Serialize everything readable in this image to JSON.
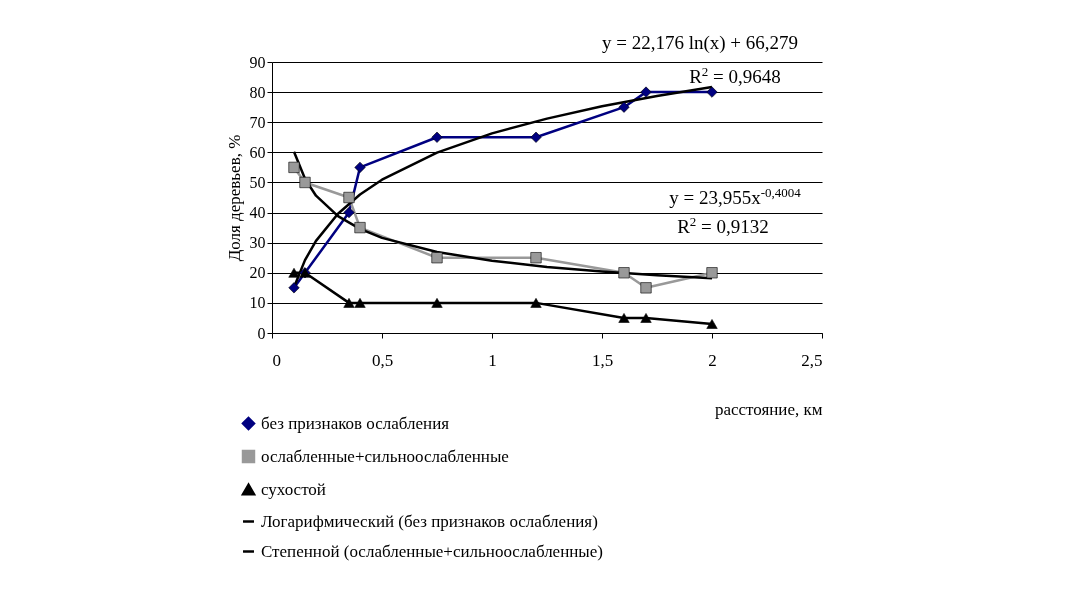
{
  "chart_data": {
    "type": "line",
    "xlabel": "расстояние, км",
    "ylabel": "Доля деревьев, %",
    "x": [
      0.1,
      0.15,
      0.35,
      0.4,
      0.75,
      1.2,
      1.6,
      1.7,
      2
    ],
    "series": [
      {
        "name": "без признаков ослабления",
        "color": "#000080",
        "marker": "diamond",
        "values": [
          15,
          20,
          40,
          55,
          65,
          65,
          75,
          80,
          80
        ]
      },
      {
        "name": "ослабленные+сильноослабленные",
        "color": "#999999",
        "marker": "square",
        "values": [
          55,
          50,
          45,
          35,
          25,
          25,
          20,
          15,
          20
        ]
      },
      {
        "name": "сухостой",
        "color": "#000000",
        "marker": "triangle",
        "values": [
          20,
          20,
          10,
          10,
          10,
          10,
          5,
          5,
          3
        ]
      },
      {
        "name": "Логарифмический (без признаков ослабления)",
        "color": "#000000",
        "marker": "none",
        "x": [
          0.1,
          0.15,
          0.2,
          0.3,
          0.4,
          0.5,
          0.75,
          1,
          1.25,
          1.5,
          1.75,
          2
        ],
        "values": [
          15.2,
          24.2,
          30.6,
          39.6,
          46.0,
          50.9,
          59.9,
          66.3,
          71.2,
          75.3,
          78.7,
          81.7
        ]
      },
      {
        "name": "Степенной (ослабленные+сильноослабленные)",
        "color": "#000000",
        "marker": "none",
        "x": [
          0.1,
          0.15,
          0.2,
          0.3,
          0.4,
          0.5,
          0.75,
          1,
          1.25,
          1.5,
          1.75,
          2
        ],
        "values": [
          60.2,
          51.2,
          45.6,
          38.8,
          34.6,
          31.6,
          26.9,
          24.0,
          21.9,
          20.4,
          19.2,
          18.2
        ]
      }
    ],
    "xlim": [
      0,
      2.5
    ],
    "xticks": [
      0,
      {
        "value": 0.5,
        "label": "0,5"
      },
      1,
      {
        "value": 1.5,
        "label": "1,5"
      },
      2,
      {
        "value": 2.5,
        "label": "2,5"
      }
    ],
    "ylim": [
      0,
      90
    ],
    "yticks": [
      0,
      10,
      20,
      30,
      40,
      50,
      60,
      70,
      80,
      90
    ],
    "grid": "y",
    "legend": "bottom",
    "line_style": "solid",
    "annotations": [
      "y = 22,176 ln(x) + 66,279",
      "R$^{2}$ = 0,9648",
      "y = 23,955x$^{-0,4004}$",
      "R$^{2}$ = 0,9132"
    ]
  }
}
